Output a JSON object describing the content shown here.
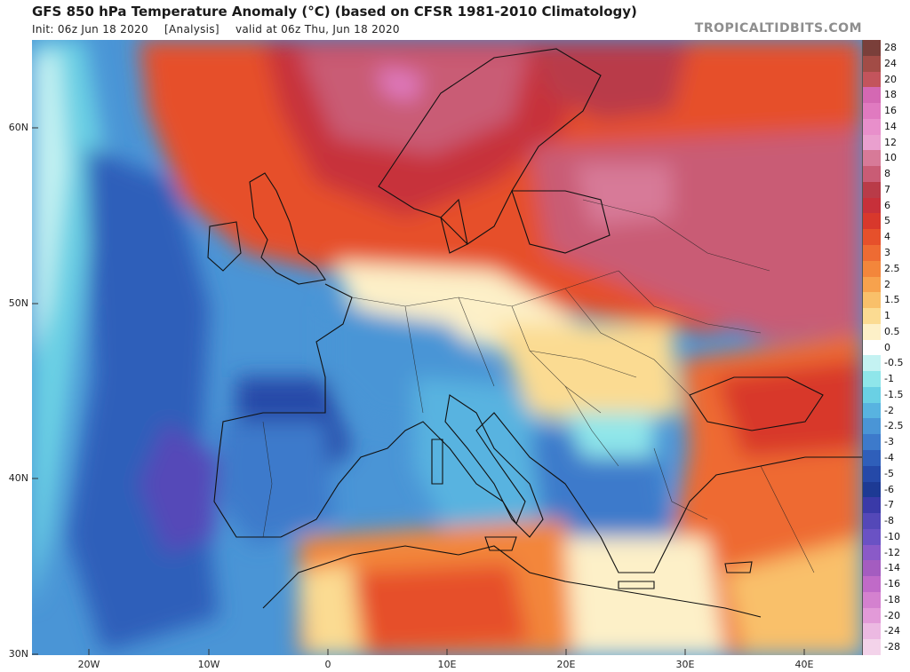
{
  "header": {
    "title": "GFS 850 hPa Temperature Anomaly (°C) (based on CFSR 1981-2010 Climatology)",
    "init": "Init: 06z Jun 18 2020",
    "analysis": "[Analysis]",
    "valid": "valid at 06z Thu, Jun 18 2020",
    "brand": "TROPICALTIDBITS.COM"
  },
  "axes": {
    "lat_labels": [
      "60N",
      "50N",
      "40N",
      "30N"
    ],
    "lon_labels": [
      "20W",
      "10W",
      "0",
      "10E",
      "20E",
      "30E",
      "40E"
    ]
  },
  "colorbar": {
    "entries": [
      {
        "label": "28",
        "color": "#7a3f3a"
      },
      {
        "label": "24",
        "color": "#a24c46"
      },
      {
        "label": "20",
        "color": "#c3545c"
      },
      {
        "label": "18",
        "color": "#d468b3"
      },
      {
        "label": "16",
        "color": "#e07ac0"
      },
      {
        "label": "14",
        "color": "#e88fcb"
      },
      {
        "label": "12",
        "color": "#eaa0cf"
      },
      {
        "label": "10",
        "color": "#d77a98"
      },
      {
        "label": "8",
        "color": "#c95c75"
      },
      {
        "label": "7",
        "color": "#b93b48"
      },
      {
        "label": "6",
        "color": "#c7303a"
      },
      {
        "label": "5",
        "color": "#d8382c"
      },
      {
        "label": "4",
        "color": "#e6502b"
      },
      {
        "label": "3",
        "color": "#ee6b33"
      },
      {
        "label": "2.5",
        "color": "#f3863b"
      },
      {
        "label": "2",
        "color": "#f7a24d"
      },
      {
        "label": "1.5",
        "color": "#f9c06a"
      },
      {
        "label": "1",
        "color": "#fbdb92"
      },
      {
        "label": "0.5",
        "color": "#fdf0c8"
      },
      {
        "label": "0",
        "color": "#ffffff"
      },
      {
        "label": "-0.5",
        "color": "#c4f2f2"
      },
      {
        "label": "-1",
        "color": "#8fe6ea"
      },
      {
        "label": "-1.5",
        "color": "#6ad0e4"
      },
      {
        "label": "-2",
        "color": "#58b3e0"
      },
      {
        "label": "-2.5",
        "color": "#4a95d6"
      },
      {
        "label": "-3",
        "color": "#3d7acb"
      },
      {
        "label": "-4",
        "color": "#2f5fba"
      },
      {
        "label": "-5",
        "color": "#2549a8"
      },
      {
        "label": "-6",
        "color": "#1d3a94"
      },
      {
        "label": "-7",
        "color": "#3a3aa8"
      },
      {
        "label": "-8",
        "color": "#5448b8"
      },
      {
        "label": "-10",
        "color": "#6a52c4"
      },
      {
        "label": "-12",
        "color": "#8a5ac8"
      },
      {
        "label": "-14",
        "color": "#a45cc0"
      },
      {
        "label": "-16",
        "color": "#c06ac8"
      },
      {
        "label": "-18",
        "color": "#d481cf"
      },
      {
        "label": "-20",
        "color": "#e29ad8"
      },
      {
        "label": "-24",
        "color": "#ecb9e2"
      },
      {
        "label": "-28",
        "color": "#f3d3ea"
      }
    ]
  }
}
